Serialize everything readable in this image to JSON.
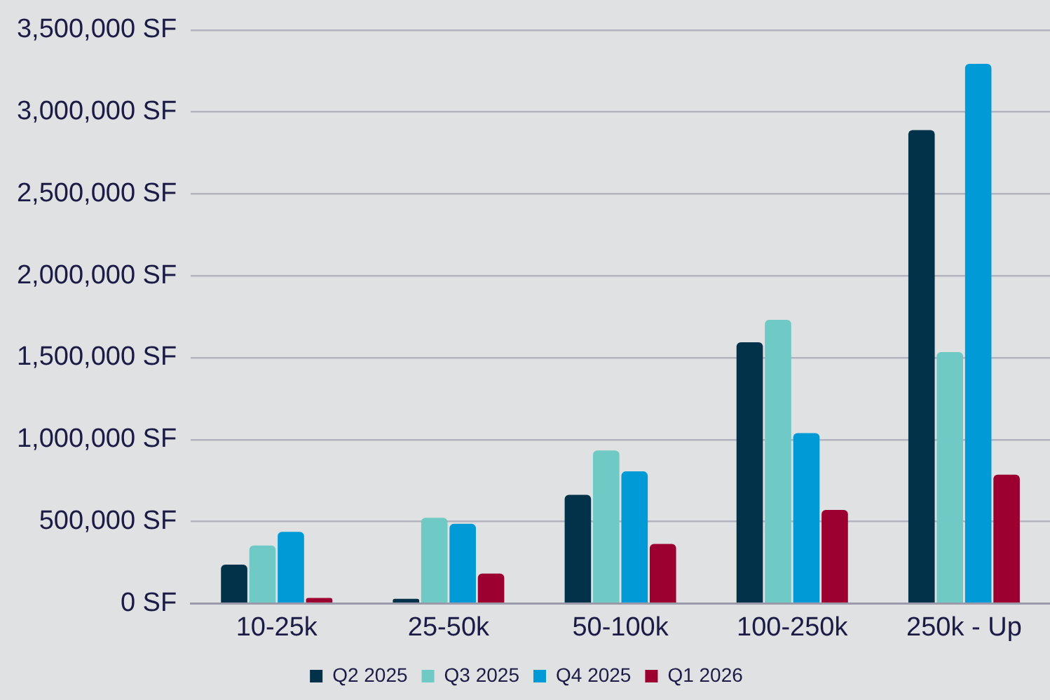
{
  "chart_data": {
    "type": "bar",
    "categories": [
      "10-25k",
      "25-50k",
      "50-100k",
      "100-250k",
      "250k - Up"
    ],
    "series": [
      {
        "name": "Q2 2025",
        "color": "#01324a",
        "values": [
          237000,
          29000,
          663000,
          1594000,
          2889000
        ]
      },
      {
        "name": "Q3 2025",
        "color": "#6fc9c5",
        "values": [
          354000,
          523000,
          934000,
          1731000,
          1534000
        ]
      },
      {
        "name": "Q4 2025",
        "color": "#009ad7",
        "values": [
          437000,
          486000,
          806000,
          1040000,
          3294000
        ]
      },
      {
        "name": "Q1 2026",
        "color": "#9b0030",
        "values": [
          34000,
          183000,
          363000,
          571000,
          786000
        ]
      }
    ],
    "ylim": [
      0,
      3500000
    ],
    "yticks": [
      {
        "value": 0,
        "label": "0 SF"
      },
      {
        "value": 500000,
        "label": "500,000 SF"
      },
      {
        "value": 1000000,
        "label": "1,000,000 SF"
      },
      {
        "value": 1500000,
        "label": "1,500,000 SF"
      },
      {
        "value": 2000000,
        "label": "2,000,000 SF"
      },
      {
        "value": 2500000,
        "label": "2,500,000 SF"
      },
      {
        "value": 3000000,
        "label": "3,000,000 SF"
      },
      {
        "value": 3500000,
        "label": "3,500,000 SF"
      }
    ],
    "grid": "y",
    "legend": "bottom"
  }
}
